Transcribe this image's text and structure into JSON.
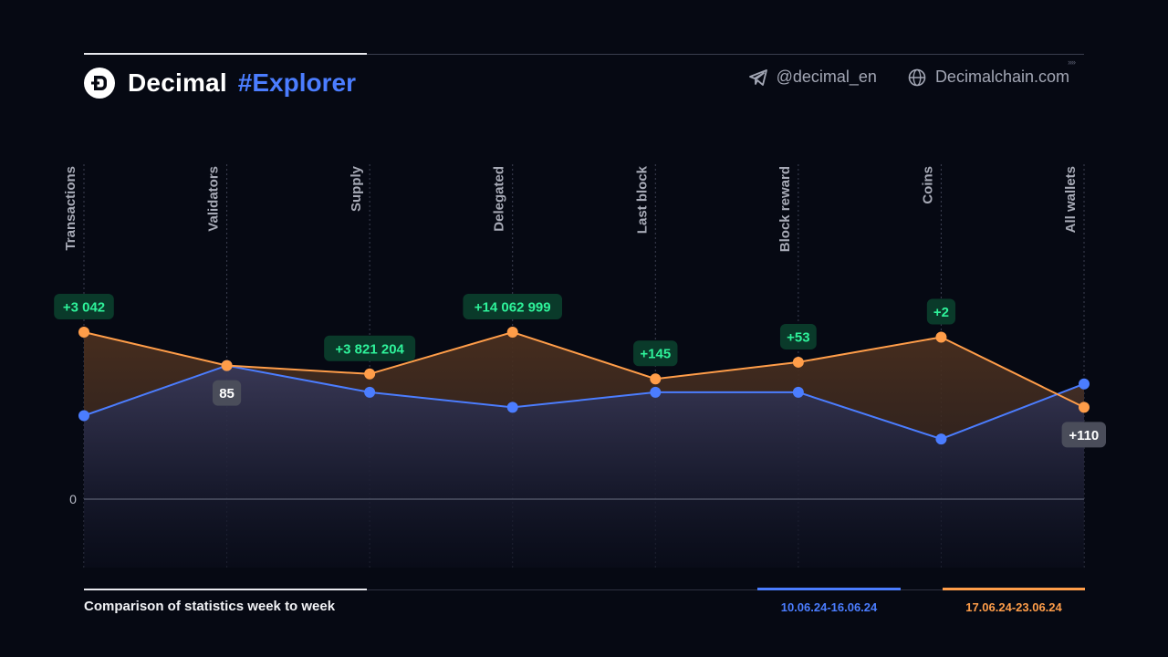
{
  "brand": {
    "name": "Decimal",
    "tag": "#Explorer"
  },
  "contacts": {
    "telegram": "@decimal_en",
    "website": "Decimalchain.com"
  },
  "footer": {
    "caption": "Comparison of statistics week to week"
  },
  "colors": {
    "background": "#060913",
    "series_a": "#4b7dff",
    "series_b": "#ff9d49",
    "delta_positive_bg": "#0a3a2a",
    "delta_positive_text": "#2ef29a",
    "delta_neutral_bg": "#4a4d5a"
  },
  "chart_data": {
    "type": "line",
    "categories": [
      "Transactions",
      "Validators",
      "Supply",
      "Delegated",
      "Last block",
      "Block reward",
      "Coins",
      "All wallets"
    ],
    "baseline_label": "0",
    "series": [
      {
        "name": "10.06.24-16.06.24",
        "color": "#4b7dff",
        "values": [
          0.5,
          0.8,
          0.64,
          0.55,
          0.64,
          0.64,
          0.36,
          0.69
        ]
      },
      {
        "name": "17.06.24-23.06.24",
        "color": "#ff9d49",
        "values": [
          1.0,
          0.8,
          0.75,
          1.0,
          0.72,
          0.82,
          0.97,
          0.55
        ]
      }
    ],
    "annotations": [
      {
        "category": "Transactions",
        "text": "+3 042",
        "style": "positive"
      },
      {
        "category": "Validators",
        "text": "85",
        "style": "neutral"
      },
      {
        "category": "Supply",
        "text": "+3 821 204",
        "style": "positive"
      },
      {
        "category": "Delegated",
        "text": "+14 062 999",
        "style": "positive"
      },
      {
        "category": "Last block",
        "text": "+145",
        "style": "positive"
      },
      {
        "category": "Block reward",
        "text": "+53",
        "style": "positive"
      },
      {
        "category": "Coins",
        "text": "+2",
        "style": "positive"
      },
      {
        "category": "All wallets",
        "text": "+110",
        "style": "neutral"
      }
    ],
    "grid": true,
    "legend_position": "bottom-right"
  }
}
